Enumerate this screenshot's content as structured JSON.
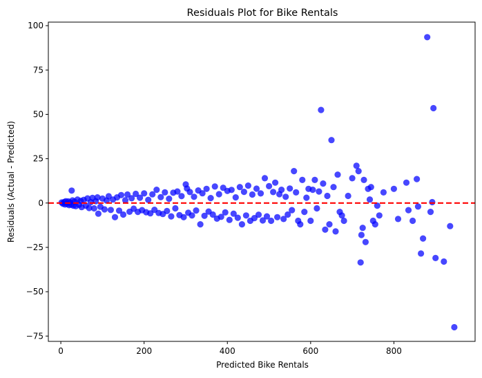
{
  "chart_data": {
    "type": "scatter",
    "title": "Residuals Plot for Bike Rentals",
    "xlabel": "Predicted Bike Rentals",
    "ylabel": "Residuals (Actual - Predicted)",
    "xlim": [
      -30,
      995
    ],
    "ylim": [
      -78,
      102
    ],
    "x_ticks": [
      0,
      200,
      400,
      600,
      800
    ],
    "x_tick_labels": [
      "0",
      "200",
      "400",
      "600",
      "800"
    ],
    "y_ticks": [
      -75,
      -50,
      -25,
      0,
      25,
      50,
      75,
      100
    ],
    "y_tick_labels": [
      "−75",
      "−50",
      "−25",
      "0",
      "25",
      "50",
      "75",
      "100"
    ],
    "grid": false,
    "reference_line": {
      "y": 0,
      "style": "dashed",
      "color": "#ff0000"
    },
    "marker_color": "#0000ff",
    "marker_alpha": 0.72,
    "series": [
      {
        "points": [
          [
            2,
            0.3
          ],
          [
            5,
            -0.4
          ],
          [
            8,
            0.6
          ],
          [
            10,
            -0.8
          ],
          [
            12,
            1.0
          ],
          [
            15,
            -0.5
          ],
          [
            18,
            0.9
          ],
          [
            20,
            -1.2
          ],
          [
            22,
            0.4
          ],
          [
            25,
            -0.9
          ],
          [
            26,
            7.0
          ],
          [
            28,
            1.5
          ],
          [
            30,
            -1.5
          ],
          [
            33,
            0.8
          ],
          [
            36,
            -1.8
          ],
          [
            40,
            2.0
          ],
          [
            44,
            -1.0
          ],
          [
            48,
            1.2
          ],
          [
            50,
            -2.3
          ],
          [
            55,
            1.8
          ],
          [
            60,
            -1.5
          ],
          [
            64,
            2.6
          ],
          [
            68,
            -2.8
          ],
          [
            72,
            0.5
          ],
          [
            76,
            2.9
          ],
          [
            80,
            -3.0
          ],
          [
            84,
            1.0
          ],
          [
            88,
            3.2
          ],
          [
            90,
            -6.0
          ],
          [
            95,
            -2.1
          ],
          [
            100,
            2.5
          ],
          [
            105,
            -3.6
          ],
          [
            110,
            1.4
          ],
          [
            115,
            3.8
          ],
          [
            120,
            -3.9
          ],
          [
            125,
            2.0
          ],
          [
            130,
            -8.0
          ],
          [
            135,
            3.2
          ],
          [
            140,
            -4.3
          ],
          [
            145,
            4.5
          ],
          [
            150,
            -6.5
          ],
          [
            155,
            1.6
          ],
          [
            160,
            4.8
          ],
          [
            165,
            -4.9
          ],
          [
            170,
            2.7
          ],
          [
            175,
            -3.2
          ],
          [
            180,
            5.2
          ],
          [
            185,
            -5.0
          ],
          [
            190,
            3.0
          ],
          [
            195,
            -4.0
          ],
          [
            200,
            5.4
          ],
          [
            205,
            -5.2
          ],
          [
            210,
            1.8
          ],
          [
            215,
            -5.8
          ],
          [
            220,
            4.9
          ],
          [
            225,
            -3.8
          ],
          [
            230,
            7.5
          ],
          [
            235,
            -5.6
          ],
          [
            240,
            3.3
          ],
          [
            245,
            -6.2
          ],
          [
            250,
            6.0
          ],
          [
            255,
            -4.5
          ],
          [
            260,
            2.4
          ],
          [
            265,
            -7.5
          ],
          [
            270,
            5.8
          ],
          [
            275,
            -3.0
          ],
          [
            280,
            6.5
          ],
          [
            285,
            -6.8
          ],
          [
            290,
            3.9
          ],
          [
            295,
            -8.0
          ],
          [
            300,
            10.5
          ],
          [
            303,
            8.2
          ],
          [
            306,
            -5.5
          ],
          [
            310,
            6.2
          ],
          [
            315,
            -7.0
          ],
          [
            320,
            3.5
          ],
          [
            325,
            -4.2
          ],
          [
            330,
            7.1
          ],
          [
            335,
            -12.0
          ],
          [
            340,
            5.5
          ],
          [
            345,
            -7.2
          ],
          [
            350,
            8.0
          ],
          [
            355,
            -4.8
          ],
          [
            360,
            2.8
          ],
          [
            365,
            -6.5
          ],
          [
            370,
            9.3
          ],
          [
            375,
            -8.8
          ],
          [
            380,
            5.0
          ],
          [
            385,
            -7.8
          ],
          [
            390,
            8.6
          ],
          [
            395,
            -5.3
          ],
          [
            400,
            6.8
          ],
          [
            405,
            -9.5
          ],
          [
            410,
            7.4
          ],
          [
            415,
            -6.0
          ],
          [
            420,
            3.2
          ],
          [
            425,
            -8.3
          ],
          [
            430,
            9.0
          ],
          [
            435,
            -12.0
          ],
          [
            440,
            6.3
          ],
          [
            445,
            -7.0
          ],
          [
            450,
            9.8
          ],
          [
            455,
            -10.0
          ],
          [
            460,
            4.8
          ],
          [
            465,
            -8.5
          ],
          [
            470,
            8.1
          ],
          [
            475,
            -6.6
          ],
          [
            480,
            5.4
          ],
          [
            485,
            -9.8
          ],
          [
            490,
            14.0
          ],
          [
            495,
            -7.5
          ],
          [
            500,
            9.5
          ],
          [
            505,
            -10.0
          ],
          [
            510,
            6.2
          ],
          [
            515,
            11.5
          ],
          [
            520,
            -8.0
          ],
          [
            525,
            5.0
          ],
          [
            530,
            7.5
          ],
          [
            535,
            -9.0
          ],
          [
            540,
            3.5
          ],
          [
            545,
            -6.5
          ],
          [
            550,
            8.2
          ],
          [
            555,
            -4.0
          ],
          [
            560,
            18.0
          ],
          [
            565,
            6.0
          ],
          [
            570,
            -10.0
          ],
          [
            575,
            -12.0
          ],
          [
            580,
            13.0
          ],
          [
            585,
            -5.0
          ],
          [
            590,
            3.0
          ],
          [
            595,
            8.0
          ],
          [
            600,
            -10.0
          ],
          [
            605,
            7.5
          ],
          [
            610,
            13.0
          ],
          [
            615,
            -3.0
          ],
          [
            620,
            6.5
          ],
          [
            625,
            52.5
          ],
          [
            630,
            11.0
          ],
          [
            635,
            -15.0
          ],
          [
            640,
            4.0
          ],
          [
            645,
            -12.0
          ],
          [
            650,
            35.5
          ],
          [
            655,
            9.0
          ],
          [
            660,
            -16.0
          ],
          [
            665,
            16.0
          ],
          [
            670,
            -5.0
          ],
          [
            675,
            -7.0
          ],
          [
            680,
            -10.0
          ],
          [
            690,
            4.0
          ],
          [
            700,
            14.0
          ],
          [
            710,
            21.0
          ],
          [
            715,
            18.0
          ],
          [
            720,
            -33.5
          ],
          [
            722,
            -18.0
          ],
          [
            725,
            -14.0
          ],
          [
            728,
            13.0
          ],
          [
            732,
            -22.0
          ],
          [
            738,
            8.0
          ],
          [
            742,
            2.0
          ],
          [
            745,
            9.0
          ],
          [
            750,
            -10.0
          ],
          [
            755,
            -12.0
          ],
          [
            760,
            -1.5
          ],
          [
            765,
            -7.0
          ],
          [
            775,
            6.0
          ],
          [
            800,
            8.0
          ],
          [
            810,
            -9.0
          ],
          [
            830,
            11.5
          ],
          [
            835,
            -4.0
          ],
          [
            845,
            -10.0
          ],
          [
            855,
            13.5
          ],
          [
            858,
            -2.0
          ],
          [
            865,
            -28.5
          ],
          [
            870,
            -20.0
          ],
          [
            880,
            93.5
          ],
          [
            888,
            -5.0
          ],
          [
            892,
            0.5
          ],
          [
            895,
            53.5
          ],
          [
            900,
            -31.0
          ],
          [
            920,
            -33.0
          ],
          [
            935,
            -13.0
          ],
          [
            945,
            -70.0
          ]
        ]
      }
    ]
  }
}
